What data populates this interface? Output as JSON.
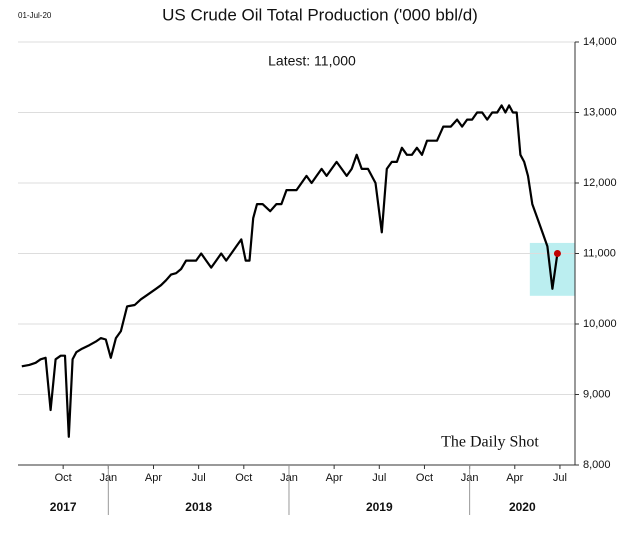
{
  "chart_data": {
    "type": "line",
    "title": "US Crude Oil Total Production ('000 bbl/d)",
    "date_label": "01-Jul-20",
    "annotation": "Latest:  11,000",
    "watermark": "The Daily Shot",
    "color": "#000000",
    "marker_color": "#c00000",
    "highlight": {
      "color": "#9ee7ea",
      "x": [
        "2020-05",
        "2020-08"
      ],
      "y": [
        10400,
        11150
      ]
    },
    "grid": true,
    "x": [
      "2017-07",
      "2017-07",
      "2017-08",
      "2017-08",
      "2017-08",
      "2017-09",
      "2017-09",
      "2017-09",
      "2017-10",
      "2017-10",
      "2017-10",
      "2017-10",
      "2017-11",
      "2017-11",
      "2017-12",
      "2017-12",
      "2017-12",
      "2018-01",
      "2018-01",
      "2018-01",
      "2018-02",
      "2018-02",
      "2018-03",
      "2018-03",
      "2018-03",
      "2018-04",
      "2018-04",
      "2018-04",
      "2018-05",
      "2018-05",
      "2018-05",
      "2018-06",
      "2018-06",
      "2018-06",
      "2018-07",
      "2018-07",
      "2018-07",
      "2018-08",
      "2018-08",
      "2018-08",
      "2018-09",
      "2018-09",
      "2018-09",
      "2018-10",
      "2018-10",
      "2018-10",
      "2018-10",
      "2018-11",
      "2018-11",
      "2018-12",
      "2018-12",
      "2018-12",
      "2019-01",
      "2019-01",
      "2019-01",
      "2019-02",
      "2019-02",
      "2019-02",
      "2019-03",
      "2019-03",
      "2019-03",
      "2019-04",
      "2019-04",
      "2019-04",
      "2019-05",
      "2019-05",
      "2019-05",
      "2019-06",
      "2019-06",
      "2019-07",
      "2019-07",
      "2019-07",
      "2019-08",
      "2019-08",
      "2019-08",
      "2019-09",
      "2019-09",
      "2019-09",
      "2019-10",
      "2019-10",
      "2019-10",
      "2019-11",
      "2019-11",
      "2019-12",
      "2019-12",
      "2019-12",
      "2020-01",
      "2020-01",
      "2020-01",
      "2020-02",
      "2020-02",
      "2020-02",
      "2020-03",
      "2020-03",
      "2020-03",
      "2020-03",
      "2020-04",
      "2020-04",
      "2020-04",
      "2020-04",
      "2020-05",
      "2020-05",
      "2020-05",
      "2020-06",
      "2020-06",
      "2020-06"
    ],
    "values": [
      9400,
      9420,
      9450,
      9500,
      9520,
      8780,
      9500,
      9550,
      9550,
      8400,
      9500,
      9600,
      9650,
      9700,
      9750,
      9800,
      9780,
      9520,
      9800,
      9900,
      10250,
      10270,
      10350,
      10400,
      10450,
      10500,
      10550,
      10620,
      10700,
      10720,
      10780,
      10900,
      10900,
      10900,
      11000,
      10900,
      10800,
      10900,
      11000,
      10900,
      11000,
      11100,
      11200,
      10900,
      10900,
      11500,
      11700,
      11700,
      11600,
      11700,
      11700,
      11900,
      11900,
      11900,
      12000,
      12100,
      12000,
      12100,
      12200,
      12100,
      12200,
      12300,
      12200,
      12100,
      12200,
      12400,
      12200,
      12200,
      12000,
      11300,
      12200,
      12300,
      12300,
      12500,
      12400,
      12400,
      12500,
      12400,
      12600,
      12600,
      12600,
      12800,
      12800,
      12900,
      12800,
      12900,
      12900,
      13000,
      13000,
      12900,
      13000,
      13000,
      13100,
      13000,
      13100,
      13000,
      13000,
      12400,
      12300,
      12100,
      11700,
      11500,
      11300,
      11100,
      10500,
      11000
    ],
    "xlim": [
      "2017-07",
      "2020-08"
    ],
    "xticks": [
      {
        "value": "2017-10",
        "label": "Oct"
      },
      {
        "value": "2018-01",
        "label": "Jan"
      },
      {
        "value": "2018-04",
        "label": "Apr"
      },
      {
        "value": "2018-07",
        "label": "Jul"
      },
      {
        "value": "2018-10",
        "label": "Oct"
      },
      {
        "value": "2019-01",
        "label": "Jan"
      },
      {
        "value": "2019-04",
        "label": "Apr"
      },
      {
        "value": "2019-07",
        "label": "Jul"
      },
      {
        "value": "2019-10",
        "label": "Oct"
      },
      {
        "value": "2020-01",
        "label": "Jan"
      },
      {
        "value": "2020-04",
        "label": "Apr"
      },
      {
        "value": "2020-07",
        "label": "Jul"
      }
    ],
    "years": [
      "2017",
      "2018",
      "2019",
      "2020"
    ],
    "ylim": [
      8000,
      14000
    ],
    "yticks": [
      {
        "value": 8000,
        "label": "8,000"
      },
      {
        "value": 9000,
        "label": "9,000"
      },
      {
        "value": 10000,
        "label": "10,000"
      },
      {
        "value": 11000,
        "label": "11,000"
      },
      {
        "value": 12000,
        "label": "12,000"
      },
      {
        "value": 13000,
        "label": "13,000"
      },
      {
        "value": 14000,
        "label": "14,000"
      }
    ]
  }
}
